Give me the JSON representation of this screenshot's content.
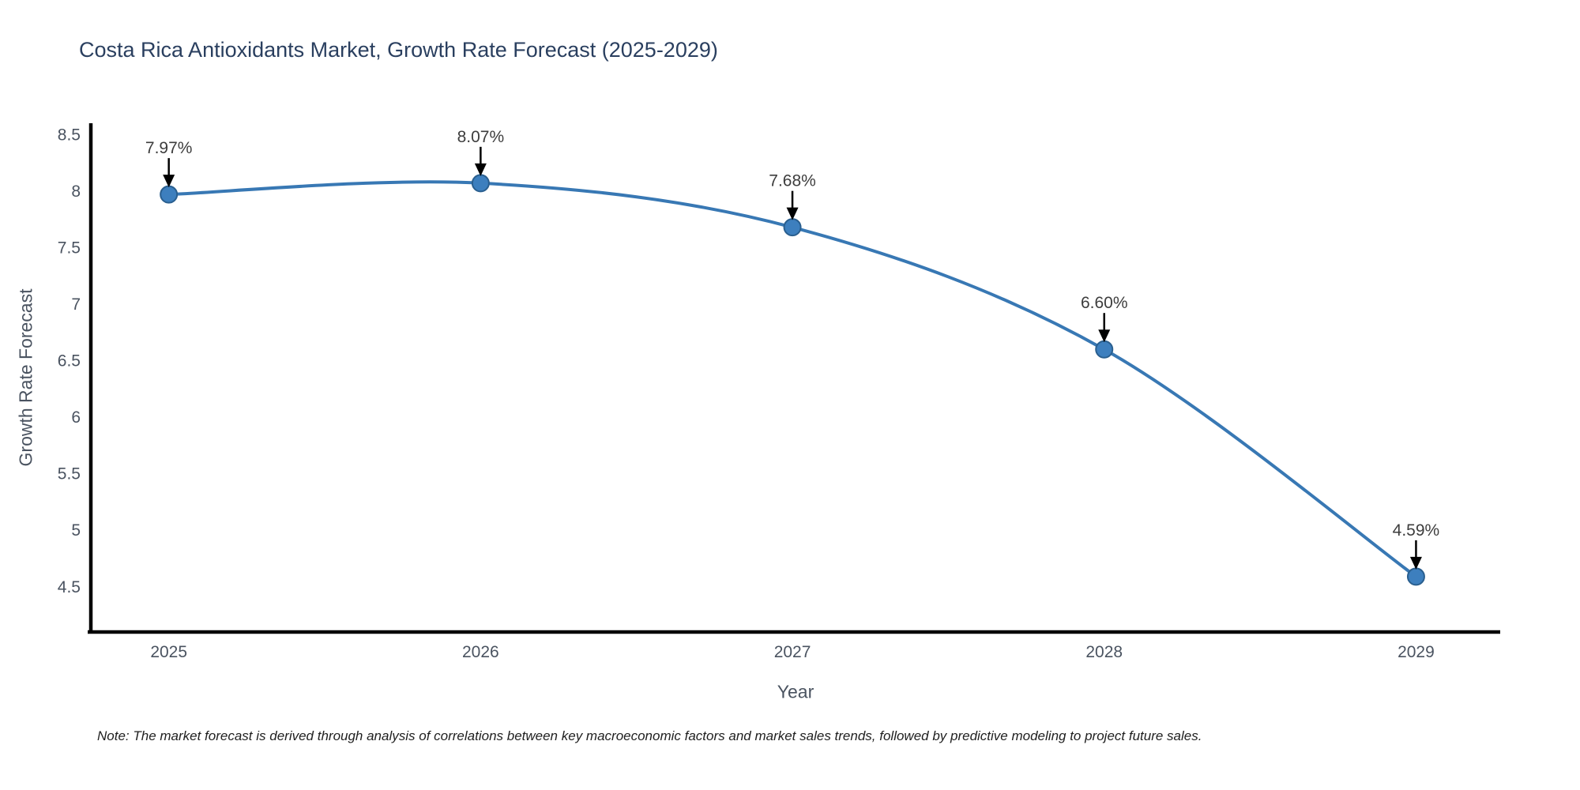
{
  "page": {
    "note": "Note: The market forecast is derived through analysis of correlations between key macroeconomic factors and market sales trends, followed by predictive modeling to project future sales."
  },
  "chart_data": {
    "type": "line",
    "title": "Costa Rica Antioxidants Market, Growth Rate Forecast (2025-2029)",
    "xlabel": "Year",
    "ylabel": "Growth Rate Forecast",
    "x": [
      2025,
      2026,
      2027,
      2028,
      2029
    ],
    "xticklabels": [
      "2025",
      "2026",
      "2027",
      "2028",
      "2029"
    ],
    "values": [
      7.97,
      8.07,
      7.68,
      6.6,
      4.59
    ],
    "point_labels": [
      "7.97%",
      "8.07%",
      "7.68%",
      "6.60%",
      "4.59%"
    ],
    "yticks": [
      4.5,
      5,
      5.5,
      6,
      6.5,
      7,
      7.5,
      8,
      8.5
    ],
    "ylim": [
      4.1,
      8.6
    ],
    "xlim": [
      2024.75,
      2029.27
    ],
    "line_shape": "spline",
    "grid": false,
    "legend_position": "none",
    "colors": {
      "line": "#3878b4",
      "marker": "#3d7fbe",
      "marker_edge": "#2a5f8f",
      "title": "#2a3f5f",
      "tick_label": "#4a5360",
      "axis_line": "#000000",
      "annotation_text": "#3d3d3d",
      "annotation_arrow": "#000000"
    }
  }
}
